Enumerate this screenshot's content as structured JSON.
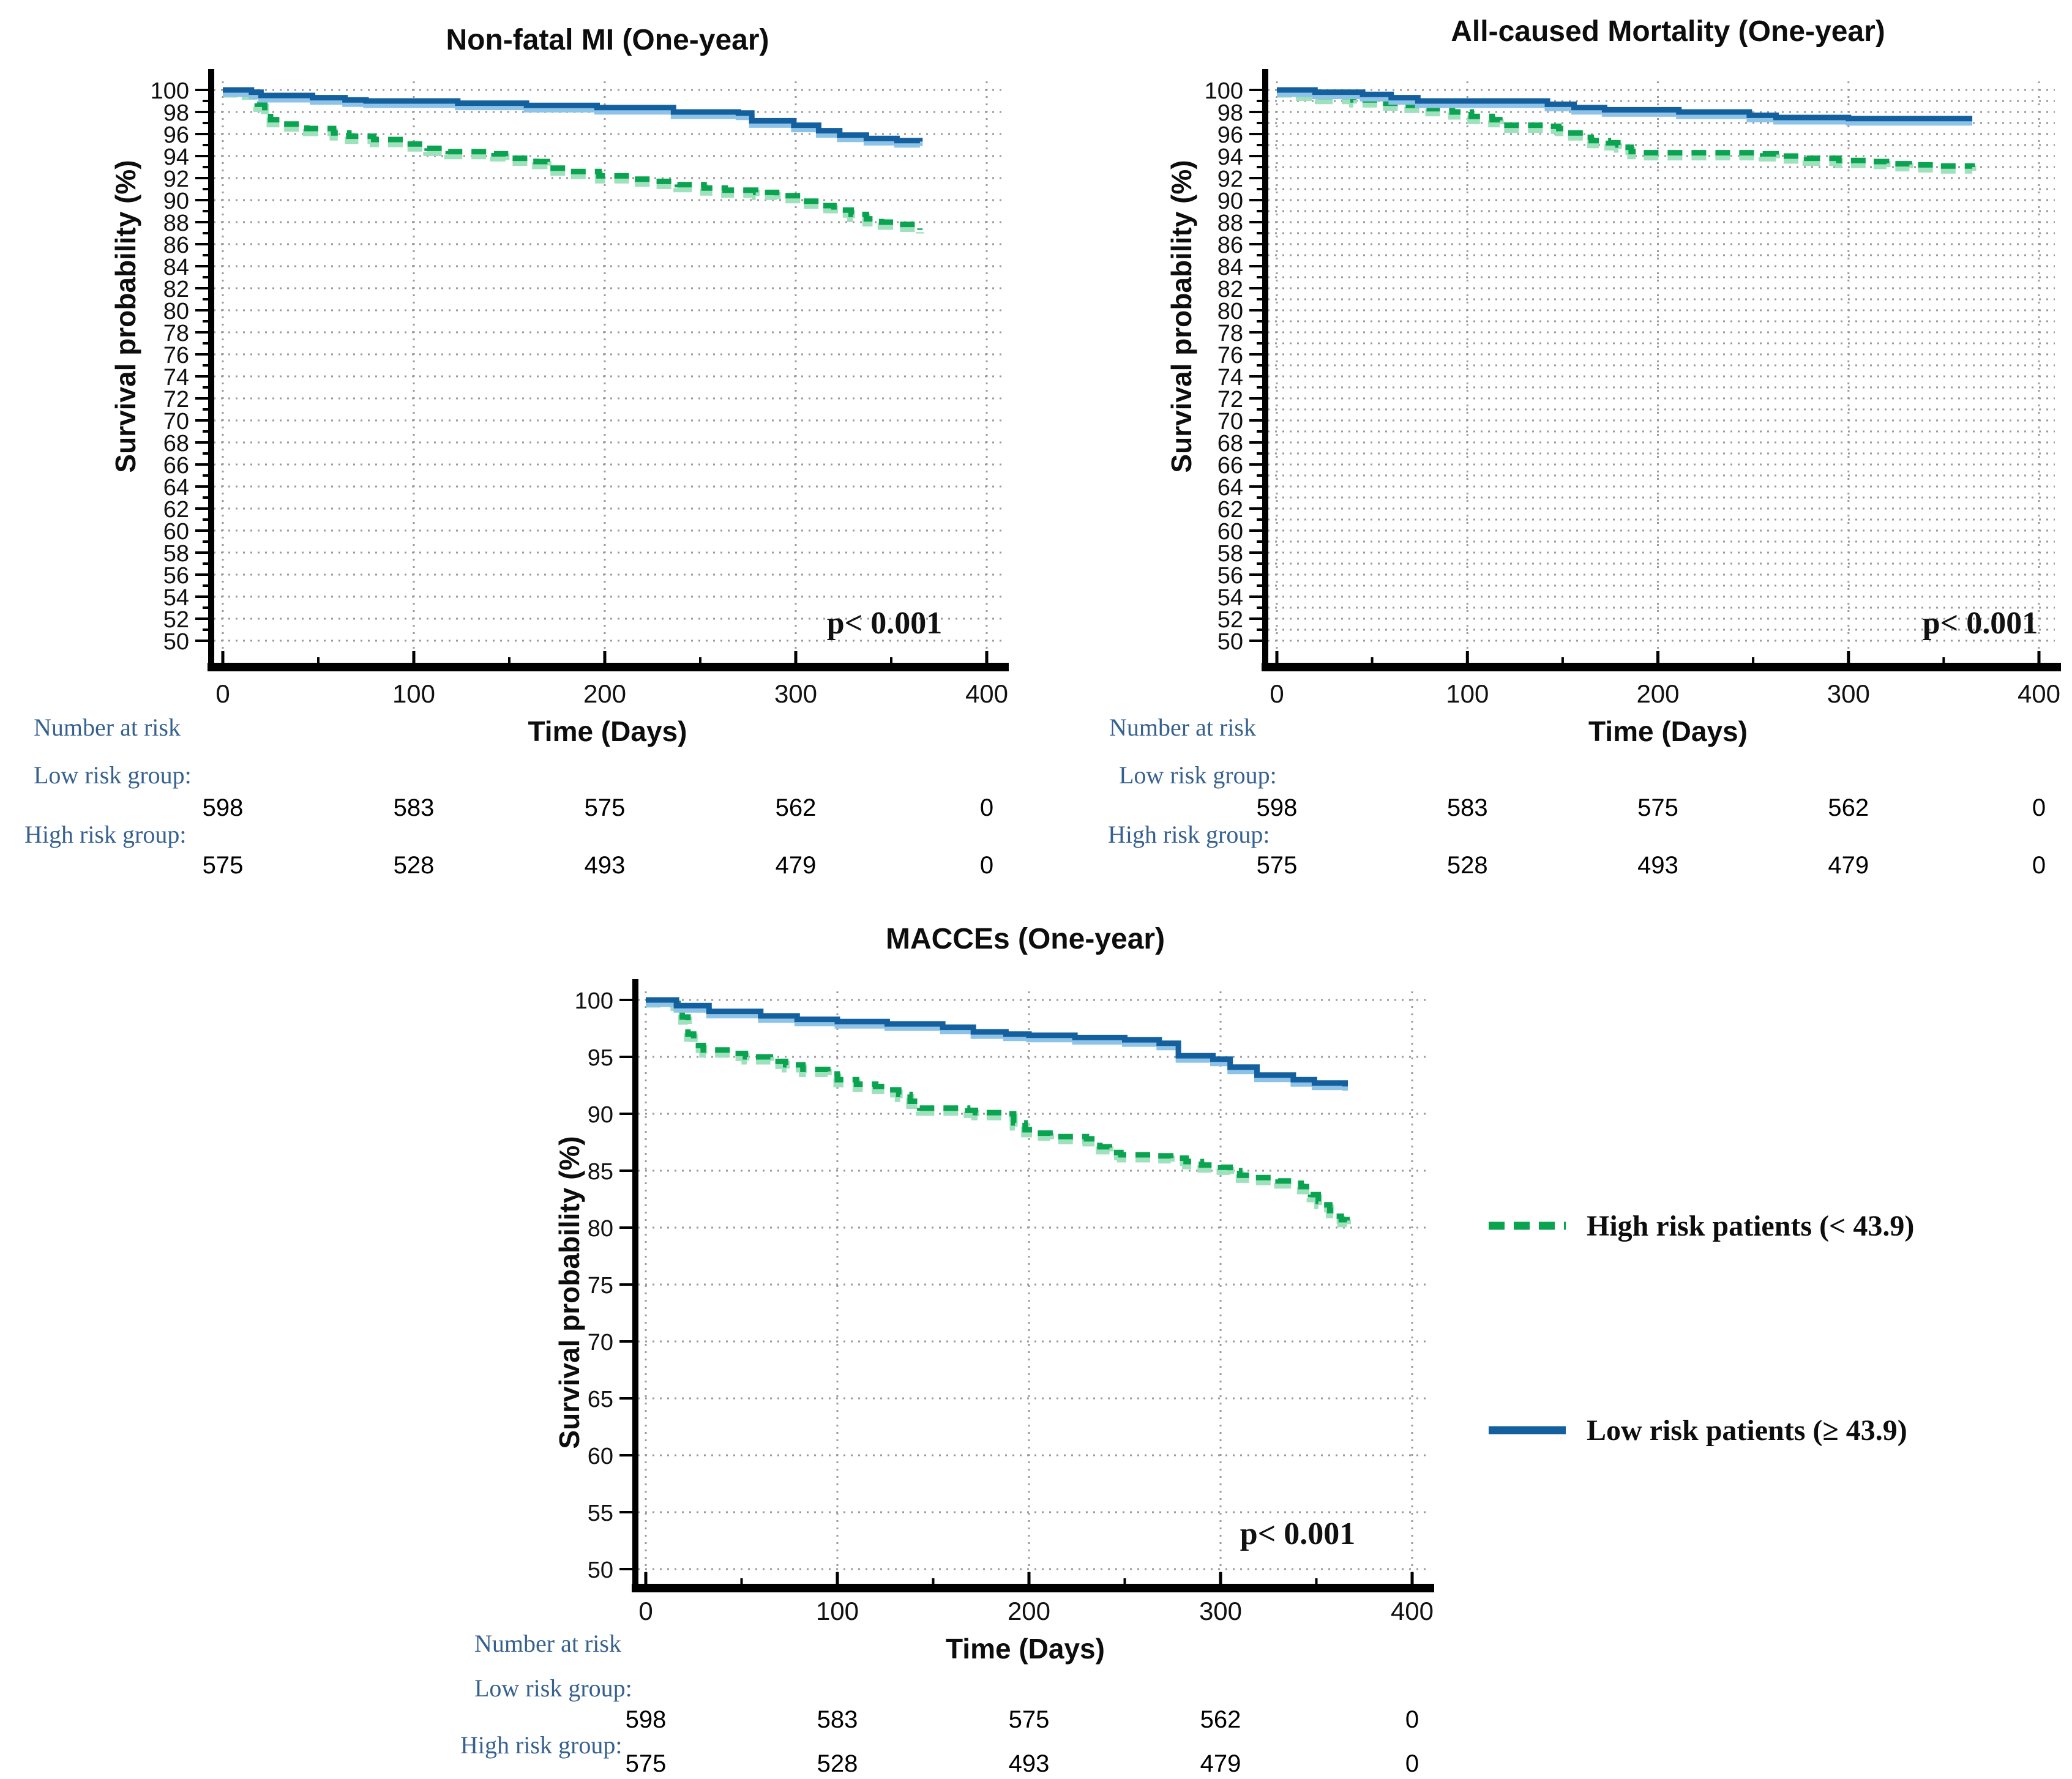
{
  "figure": {
    "background": "#ffffff",
    "legend": {
      "entries": [
        {
          "id": "high_risk",
          "label": "High risk patients (< 43.9)",
          "color": "#0aa350",
          "line_style": "dashed"
        },
        {
          "id": "low_risk",
          "label": "Low risk patients (≥ 43.9)",
          "color": "#14609f",
          "line_style": "solid"
        }
      ]
    },
    "risk_table": {
      "header": "Number at risk",
      "low_label": "Low risk group:",
      "high_label": "High risk group:"
    }
  },
  "chart_data": [
    {
      "type": "line",
      "subtype": "kaplan-meier-step",
      "title": "Non-fatal MI (One-year)",
      "xlabel": "Time (Days)",
      "ylabel": "Survival probability (%)",
      "xlim": [
        0,
        400
      ],
      "ylim": [
        50,
        100
      ],
      "x_ticks": [
        0,
        100,
        200,
        300,
        400
      ],
      "y_ticks": [
        100,
        98,
        96,
        94,
        92,
        90,
        88,
        86,
        84,
        82,
        80,
        78,
        76,
        74,
        72,
        70,
        68,
        66,
        64,
        62,
        60,
        58,
        56,
        54,
        52,
        50
      ],
      "y_label_step": 2,
      "y_grid_step": 2,
      "grid": true,
      "legend_position": "figure-right-middle",
      "p_value": "p< 0.001",
      "series": [
        {
          "name": "High risk patients (< 43.9)",
          "color": "#0aa350",
          "dashed": true,
          "points": [
            [
              0,
              100
            ],
            [
              12,
              99.8
            ],
            [
              18,
              98.7
            ],
            [
              22,
              98.0
            ],
            [
              25,
              97.3
            ],
            [
              30,
              96.9
            ],
            [
              44,
              96.5
            ],
            [
              58,
              96.1
            ],
            [
              66,
              95.8
            ],
            [
              79,
              95.5
            ],
            [
              96,
              95.1
            ],
            [
              107,
              94.7
            ],
            [
              118,
              94.4
            ],
            [
              142,
              94.2
            ],
            [
              148,
              93.8
            ],
            [
              164,
              93.5
            ],
            [
              170,
              92.9
            ],
            [
              181,
              92.6
            ],
            [
              197,
              92.2
            ],
            [
              214,
              91.9
            ],
            [
              225,
              91.7
            ],
            [
              238,
              91.4
            ],
            [
              252,
              91.1
            ],
            [
              263,
              90.9
            ],
            [
              279,
              90.7
            ],
            [
              290,
              90.4
            ],
            [
              303,
              89.9
            ],
            [
              312,
              89.5
            ],
            [
              320,
              89.1
            ],
            [
              329,
              88.7
            ],
            [
              337,
              88.3
            ],
            [
              345,
              88.0
            ],
            [
              353,
              87.8
            ],
            [
              365,
              87.3
            ]
          ]
        },
        {
          "name": "Low risk patients (≥ 43.9)",
          "color": "#14609f",
          "dashed": false,
          "points": [
            [
              0,
              100
            ],
            [
              15,
              99.8
            ],
            [
              20,
              99.5
            ],
            [
              47,
              99.3
            ],
            [
              64,
              99.1
            ],
            [
              75,
              99.0
            ],
            [
              123,
              98.8
            ],
            [
              159,
              98.6
            ],
            [
              196,
              98.4
            ],
            [
              236,
              98.0
            ],
            [
              270,
              97.9
            ],
            [
              277,
              97.2
            ],
            [
              299,
              96.8
            ],
            [
              312,
              96.3
            ],
            [
              323,
              95.9
            ],
            [
              337,
              95.6
            ],
            [
              353,
              95.4
            ],
            [
              365,
              95.3
            ]
          ]
        }
      ],
      "number_at_risk": {
        "low_risk_group": [
          598,
          583,
          575,
          562,
          0
        ],
        "high_risk_group": [
          575,
          528,
          493,
          479,
          0
        ]
      }
    },
    {
      "type": "line",
      "subtype": "kaplan-meier-step",
      "title": "All-caused Mortality (One-year)",
      "xlabel": "Time (Days)",
      "ylabel": "Survival probability (%)",
      "xlim": [
        0,
        400
      ],
      "ylim": [
        50,
        100
      ],
      "x_ticks": [
        0,
        100,
        200,
        300,
        400
      ],
      "y_ticks": [
        100,
        98,
        96,
        94,
        92,
        90,
        88,
        86,
        84,
        82,
        80,
        78,
        76,
        74,
        72,
        70,
        68,
        66,
        64,
        62,
        60,
        58,
        56,
        54,
        52,
        50
      ],
      "y_label_step": 2,
      "y_grid_step": 1,
      "grid": true,
      "legend_position": "figure-right-middle",
      "p_value": "p< 0.001",
      "series": [
        {
          "name": "High risk patients (< 43.9)",
          "color": "#0aa350",
          "dashed": true,
          "points": [
            [
              0,
              100
            ],
            [
              12,
              99.7
            ],
            [
              22,
              99.4
            ],
            [
              40,
              99.1
            ],
            [
              55,
              98.8
            ],
            [
              69,
              98.6
            ],
            [
              80,
              98.3
            ],
            [
              92,
              98.0
            ],
            [
              102,
              97.6
            ],
            [
              113,
              97.3
            ],
            [
              117,
              96.8
            ],
            [
              143,
              96.7
            ],
            [
              148,
              96.5
            ],
            [
              152,
              96.1
            ],
            [
              161,
              95.7
            ],
            [
              165,
              95.4
            ],
            [
              174,
              95.2
            ],
            [
              179,
              95.0
            ],
            [
              182,
              94.8
            ],
            [
              186,
              94.4
            ],
            [
              190,
              94.3
            ],
            [
              255,
              94.2
            ],
            [
              262,
              94.0
            ],
            [
              278,
              93.8
            ],
            [
              295,
              93.6
            ],
            [
              310,
              93.5
            ],
            [
              320,
              93.3
            ],
            [
              332,
              93.2
            ],
            [
              345,
              93.1
            ],
            [
              365,
              93.0
            ]
          ]
        },
        {
          "name": "Low risk patients (≥ 43.9)",
          "color": "#14609f",
          "dashed": false,
          "points": [
            [
              0,
              100
            ],
            [
              20,
              99.8
            ],
            [
              45,
              99.6
            ],
            [
              60,
              99.3
            ],
            [
              74,
              99.0
            ],
            [
              142,
              98.7
            ],
            [
              156,
              98.4
            ],
            [
              172,
              98.2
            ],
            [
              211,
              98.0
            ],
            [
              248,
              97.7
            ],
            [
              262,
              97.5
            ],
            [
              300,
              97.4
            ],
            [
              365,
              97.4
            ]
          ]
        }
      ],
      "number_at_risk": {
        "low_risk_group": [
          598,
          583,
          575,
          562,
          0
        ],
        "high_risk_group": [
          575,
          528,
          493,
          479,
          0
        ]
      }
    },
    {
      "type": "line",
      "subtype": "kaplan-meier-step",
      "title": "MACCEs (One-year)",
      "xlabel": "Time (Days)",
      "ylabel": "Survival probability (%)",
      "xlim": [
        0,
        400
      ],
      "ylim": [
        50,
        100
      ],
      "x_ticks": [
        0,
        100,
        200,
        300,
        400
      ],
      "y_ticks": [
        100,
        95,
        90,
        85,
        80,
        75,
        70,
        65,
        60,
        55,
        50
      ],
      "y_label_step": 5,
      "y_grid_step": 5,
      "grid": true,
      "legend_position": "figure-right-middle",
      "p_value": "p< 0.001",
      "series": [
        {
          "name": "High risk patients (< 43.9)",
          "color": "#0aa350",
          "dashed": true,
          "points": [
            [
              0,
              100
            ],
            [
              15,
              99.7
            ],
            [
              19,
              98.5
            ],
            [
              22,
              97.0
            ],
            [
              25,
              96.0
            ],
            [
              30,
              95.6
            ],
            [
              45,
              95.3
            ],
            [
              52,
              95.0
            ],
            [
              65,
              94.6
            ],
            [
              73,
              94.3
            ],
            [
              82,
              93.9
            ],
            [
              95,
              93.5
            ],
            [
              100,
              93.0
            ],
            [
              110,
              92.6
            ],
            [
              120,
              92.4
            ],
            [
              126,
              92.1
            ],
            [
              132,
              91.7
            ],
            [
              138,
              91.1
            ],
            [
              143,
              90.5
            ],
            [
              168,
              90.3
            ],
            [
              172,
              90.1
            ],
            [
              186,
              90.0
            ],
            [
              192,
              89.2
            ],
            [
              198,
              88.6
            ],
            [
              204,
              88.3
            ],
            [
              211,
              88.0
            ],
            [
              230,
              87.8
            ],
            [
              237,
              87.1
            ],
            [
              242,
              86.6
            ],
            [
              248,
              86.4
            ],
            [
              266,
              86.3
            ],
            [
              274,
              86.1
            ],
            [
              282,
              85.8
            ],
            [
              290,
              85.5
            ],
            [
              300,
              85.3
            ],
            [
              305,
              85.0
            ],
            [
              310,
              84.6
            ],
            [
              318,
              84.4
            ],
            [
              330,
              84.1
            ],
            [
              338,
              83.9
            ],
            [
              342,
              83.6
            ],
            [
              347,
              82.9
            ],
            [
              351,
              82.3
            ],
            [
              354,
              82.0
            ],
            [
              357,
              81.5
            ],
            [
              360,
              81.0
            ],
            [
              363,
              80.7
            ],
            [
              366,
              80.5
            ]
          ]
        },
        {
          "name": "Low risk patients (≥ 43.9)",
          "color": "#14609f",
          "dashed": false,
          "points": [
            [
              0,
              100
            ],
            [
              16,
              99.5
            ],
            [
              33,
              99.0
            ],
            [
              60,
              98.6
            ],
            [
              79,
              98.3
            ],
            [
              100,
              98.1
            ],
            [
              126,
              97.9
            ],
            [
              155,
              97.6
            ],
            [
              171,
              97.2
            ],
            [
              188,
              97.0
            ],
            [
              200,
              96.9
            ],
            [
              224,
              96.7
            ],
            [
              250,
              96.5
            ],
            [
              268,
              96.2
            ],
            [
              278,
              95.1
            ],
            [
              296,
              94.8
            ],
            [
              305,
              94.1
            ],
            [
              319,
              93.4
            ],
            [
              338,
              93.0
            ],
            [
              349,
              92.7
            ],
            [
              365,
              92.4
            ]
          ]
        }
      ],
      "number_at_risk": {
        "low_risk_group": [
          598,
          583,
          575,
          562,
          0
        ],
        "high_risk_group": [
          575,
          528,
          493,
          479,
          0
        ]
      }
    }
  ]
}
